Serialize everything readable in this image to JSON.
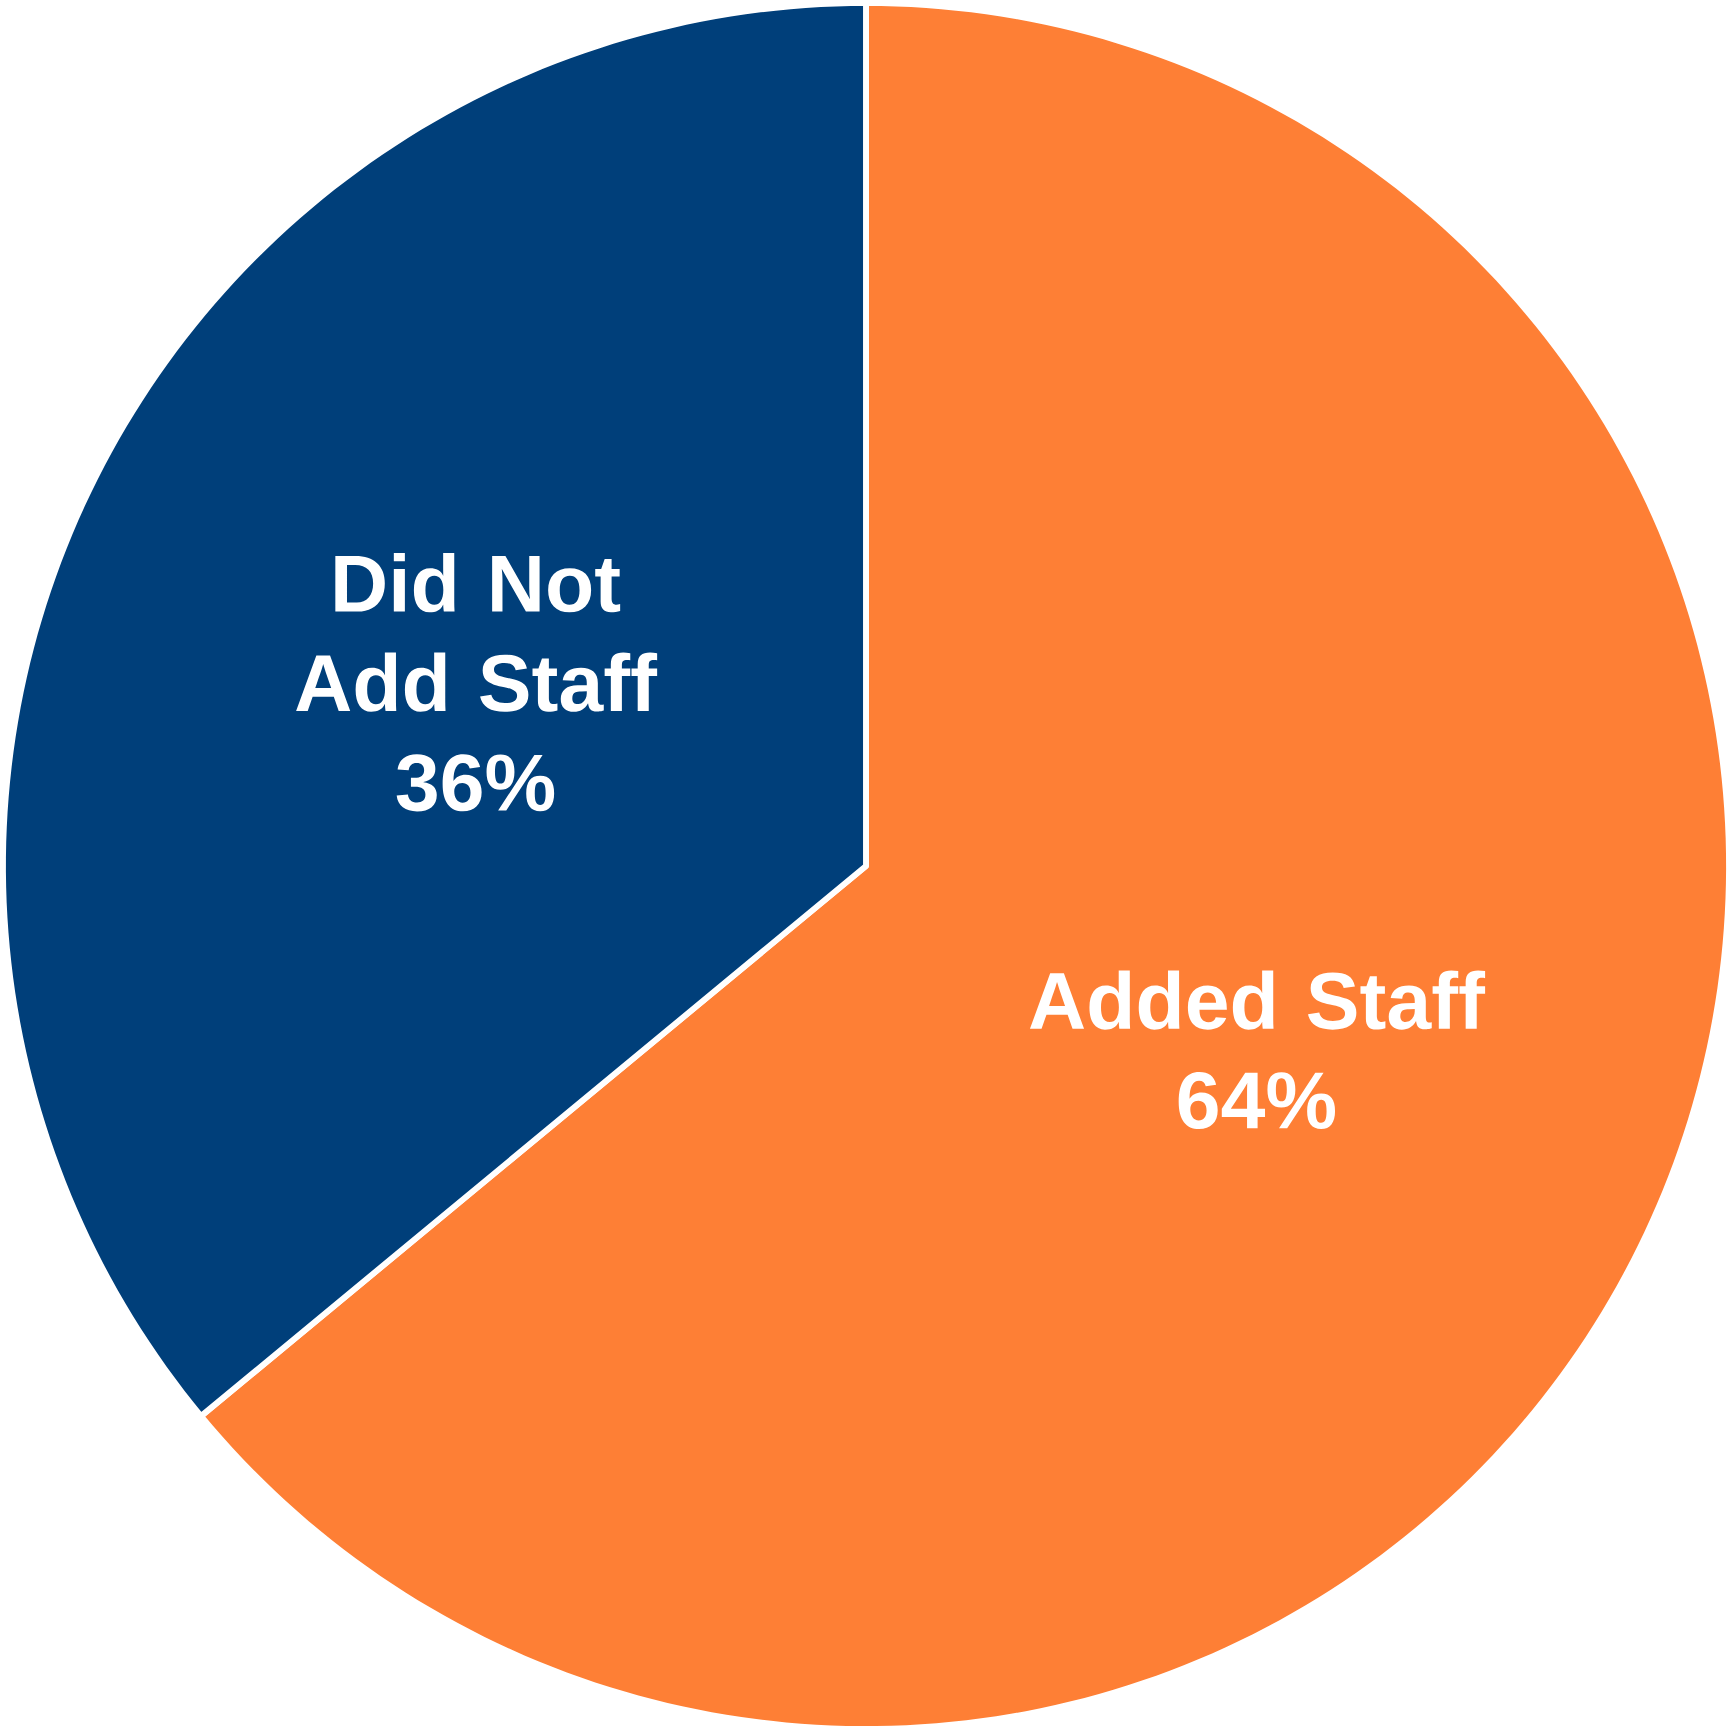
{
  "chart_data": {
    "type": "pie",
    "categories": [
      "Added Staff",
      "Did Not Add Staff"
    ],
    "values": [
      64,
      36
    ],
    "value_labels": [
      "64%",
      "36%"
    ],
    "colors": [
      "#fe7f35",
      "#003f7a"
    ]
  }
}
